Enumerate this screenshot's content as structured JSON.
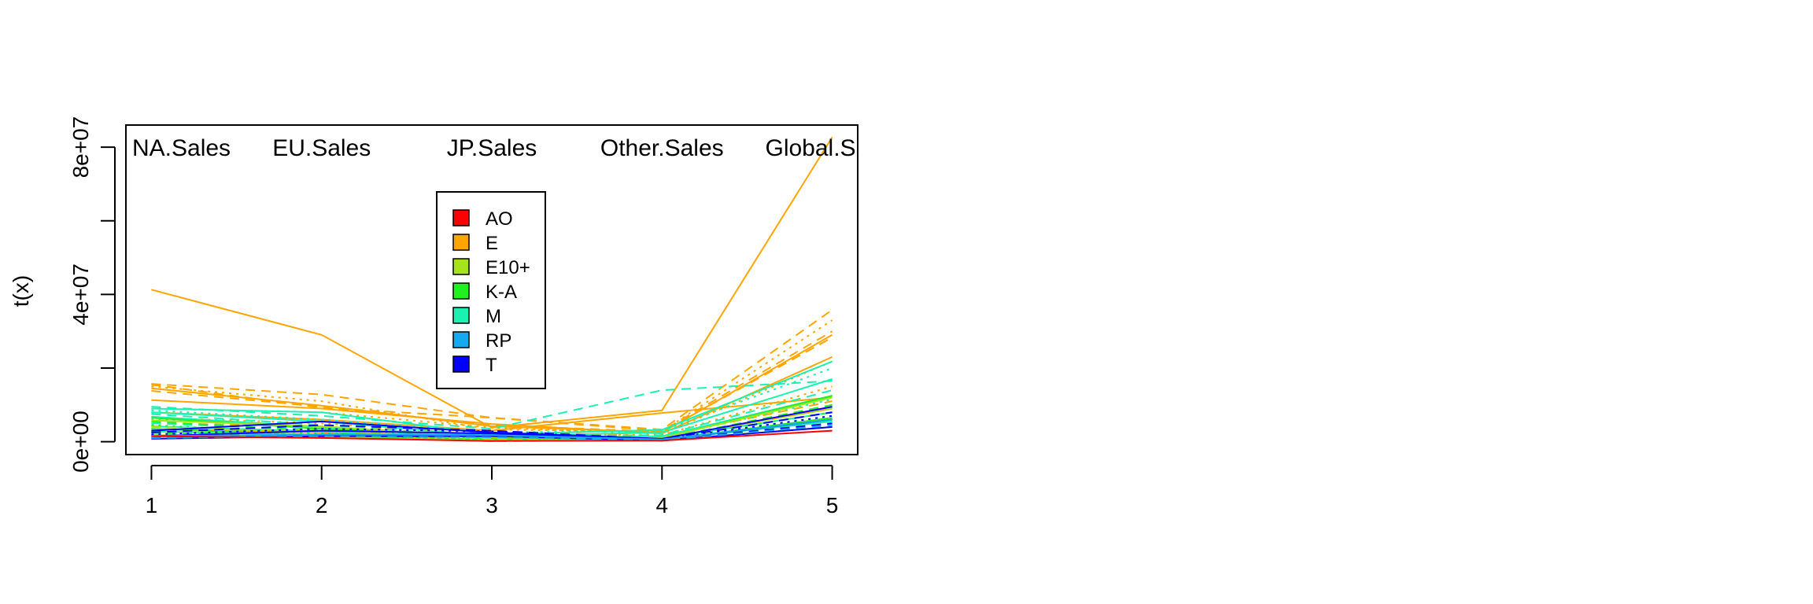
{
  "chart_data": {
    "type": "line",
    "title": "",
    "xlabel": "",
    "ylabel": "t(x)",
    "x": [
      1,
      2,
      3,
      4,
      5
    ],
    "x_tick_labels": [
      "1",
      "2",
      "3",
      "4",
      "5"
    ],
    "y_tick_labels": [
      "0e+00",
      "4e+07",
      "8e+07"
    ],
    "y_ticks": [
      0,
      20000000,
      40000000,
      60000000,
      80000000
    ],
    "ylim": [
      -3500000,
      86000000
    ],
    "xlim": [
      0.85,
      5.15
    ],
    "variable_labels": [
      "NA.Sales",
      "EU.Sales",
      "JP.Sales",
      "Other.Sales",
      "Global.Sales"
    ],
    "legend_position": "top-center",
    "legend": [
      {
        "label": "AO",
        "color": "#ff0000"
      },
      {
        "label": "E",
        "color": "#ffa500"
      },
      {
        "label": "E10+",
        "color": "#a6e21d"
      },
      {
        "label": "K-A",
        "color": "#22ee22"
      },
      {
        "label": "M",
        "color": "#19f2b0"
      },
      {
        "label": "RP",
        "color": "#18a8ee"
      },
      {
        "label": "T",
        "color": "#0000ff"
      }
    ],
    "series": [
      {
        "group": "E",
        "color": "#ffa500",
        "dash": "solid",
        "values": [
          41300000,
          29000000,
          3800000,
          8500000,
          82700000
        ]
      },
      {
        "group": "E",
        "color": "#ffa500",
        "dash": "dash",
        "values": [
          15700000,
          12800000,
          6500000,
          3300000,
          35800000
        ]
      },
      {
        "group": "E",
        "color": "#ffa500",
        "dash": "solid",
        "values": [
          14500000,
          9800000,
          4200000,
          2500000,
          29000000
        ]
      },
      {
        "group": "E",
        "color": "#ffa500",
        "dash": "dot",
        "values": [
          15000000,
          11000000,
          3300000,
          2800000,
          33000000
        ]
      },
      {
        "group": "E",
        "color": "#ffa500",
        "dash": "dash",
        "values": [
          13800000,
          9500000,
          4500000,
          2700000,
          28300000
        ]
      },
      {
        "group": "E",
        "color": "#ffa500",
        "dash": "solid",
        "values": [
          11300000,
          9000000,
          4800000,
          2200000,
          23000000
        ]
      },
      {
        "group": "E",
        "color": "#ffa500",
        "dash": "dot",
        "values": [
          9000000,
          8000000,
          3800000,
          2100000,
          21800000
        ]
      },
      {
        "group": "E",
        "color": "#ffa500",
        "dash": "dash",
        "values": [
          15500000,
          9200000,
          6500000,
          2900000,
          30000000
        ]
      },
      {
        "group": "E",
        "color": "#ffa500",
        "dash": "solid",
        "values": [
          8000000,
          6000000,
          3000000,
          7800000,
          12000000
        ]
      },
      {
        "group": "E",
        "color": "#ffa500",
        "dash": "dot",
        "values": [
          6500000,
          5000000,
          2000000,
          1800000,
          15000000
        ]
      },
      {
        "group": "E",
        "color": "#ffa500",
        "dash": "dash",
        "values": [
          5000000,
          4200000,
          2800000,
          1500000,
          11000000
        ]
      },
      {
        "group": "E",
        "color": "#ffa500",
        "dash": "solid",
        "values": [
          3500000,
          2500000,
          1500000,
          900000,
          9000000
        ]
      },
      {
        "group": "M",
        "color": "#19f2b0",
        "dash": "dash",
        "values": [
          9500000,
          7000000,
          3500000,
          14000000,
          16500000
        ]
      },
      {
        "group": "M",
        "color": "#19f2b0",
        "dash": "solid",
        "values": [
          9000000,
          8000000,
          2000000,
          3200000,
          21800000
        ]
      },
      {
        "group": "M",
        "color": "#19f2b0",
        "dash": "dot",
        "values": [
          8500000,
          6000000,
          2500000,
          3000000,
          20000000
        ]
      },
      {
        "group": "M",
        "color": "#19f2b0",
        "dash": "solid",
        "values": [
          8000000,
          5500000,
          1500000,
          2500000,
          17000000
        ]
      },
      {
        "group": "M",
        "color": "#19f2b0",
        "dash": "dash",
        "values": [
          7500000,
          4500000,
          1200000,
          1800000,
          14000000
        ]
      },
      {
        "group": "M",
        "color": "#19f2b0",
        "dash": "solid",
        "values": [
          6800000,
          4000000,
          800000,
          1500000,
          12500000
        ]
      },
      {
        "group": "M",
        "color": "#19f2b0",
        "dash": "dot",
        "values": [
          6000000,
          3800000,
          600000,
          1200000,
          11500000
        ]
      },
      {
        "group": "M",
        "color": "#19f2b0",
        "dash": "dash",
        "values": [
          5000000,
          3200000,
          400000,
          1000000,
          9500000
        ]
      },
      {
        "group": "M",
        "color": "#19f2b0",
        "dash": "solid",
        "values": [
          4200000,
          2800000,
          300000,
          900000,
          8000000
        ]
      },
      {
        "group": "M",
        "color": "#19f2b0",
        "dash": "dot",
        "values": [
          3500000,
          2400000,
          200000,
          800000,
          7000000
        ]
      },
      {
        "group": "M",
        "color": "#19f2b0",
        "dash": "solid",
        "values": [
          2800000,
          1800000,
          200000,
          600000,
          5500000
        ]
      },
      {
        "group": "M",
        "color": "#19f2b0",
        "dash": "dash",
        "values": [
          2000000,
          1400000,
          100000,
          500000,
          4000000
        ]
      },
      {
        "group": "K-A",
        "color": "#22ee22",
        "dash": "solid",
        "values": [
          6500000,
          3500000,
          1500000,
          1000000,
          12500000
        ]
      },
      {
        "group": "K-A",
        "color": "#22ee22",
        "dash": "dash",
        "values": [
          5500000,
          2800000,
          1000000,
          800000,
          10000000
        ]
      },
      {
        "group": "K-A",
        "color": "#22ee22",
        "dash": "dot",
        "values": [
          4500000,
          2200000,
          800000,
          700000,
          8000000
        ]
      },
      {
        "group": "K-A",
        "color": "#22ee22",
        "dash": "solid",
        "values": [
          3500000,
          1800000,
          600000,
          500000,
          6500000
        ]
      },
      {
        "group": "K-A",
        "color": "#22ee22",
        "dash": "dash",
        "values": [
          2500000,
          1200000,
          400000,
          400000,
          4500000
        ]
      },
      {
        "group": "E10+",
        "color": "#a6e21d",
        "dash": "solid",
        "values": [
          5800000,
          4200000,
          1200000,
          1100000,
          12000000
        ]
      },
      {
        "group": "E10+",
        "color": "#a6e21d",
        "dash": "dash",
        "values": [
          4000000,
          3000000,
          800000,
          900000,
          9000000
        ]
      },
      {
        "group": "E10+",
        "color": "#a6e21d",
        "dash": "dot",
        "values": [
          2800000,
          2000000,
          500000,
          600000,
          6000000
        ]
      },
      {
        "group": "E10+",
        "color": "#a6e21d",
        "dash": "solid",
        "values": [
          1800000,
          1200000,
          300000,
          400000,
          4000000
        ]
      },
      {
        "group": "T",
        "color": "#0000ff",
        "dash": "solid",
        "values": [
          3000000,
          5500000,
          2500000,
          800000,
          9500000
        ]
      },
      {
        "group": "T",
        "color": "#0000ff",
        "dash": "dash",
        "values": [
          2500000,
          4500000,
          3000000,
          700000,
          8000000
        ]
      },
      {
        "group": "T",
        "color": "#0000ff",
        "dash": "dot",
        "values": [
          2000000,
          3500000,
          2800000,
          600000,
          7000000
        ]
      },
      {
        "group": "T",
        "color": "#0000ff",
        "dash": "solid",
        "values": [
          1500000,
          3000000,
          2200000,
          500000,
          6000000
        ]
      },
      {
        "group": "T",
        "color": "#0000ff",
        "dash": "dash",
        "values": [
          1000000,
          2000000,
          1800000,
          400000,
          5000000
        ]
      },
      {
        "group": "T",
        "color": "#0000ff",
        "dash": "solid",
        "values": [
          800000,
          1500000,
          1500000,
          300000,
          4000000
        ]
      },
      {
        "group": "RP",
        "color": "#18a8ee",
        "dash": "solid",
        "values": [
          1500000,
          2000000,
          1800000,
          600000,
          6000000
        ]
      },
      {
        "group": "RP",
        "color": "#18a8ee",
        "dash": "dash",
        "values": [
          1000000,
          1500000,
          1200000,
          400000,
          4500000
        ]
      },
      {
        "group": "AO",
        "color": "#ff0000",
        "dash": "solid",
        "values": [
          1500000,
          1000000,
          200000,
          300000,
          3000000
        ]
      }
    ]
  }
}
